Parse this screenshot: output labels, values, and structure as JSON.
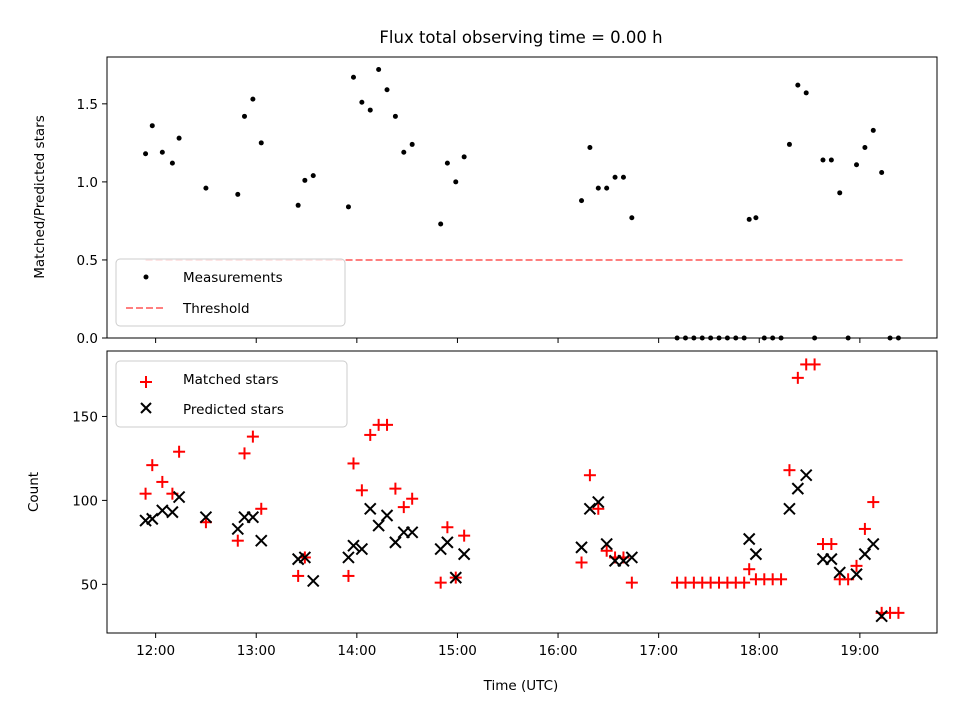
{
  "title": "Flux total observing time = 0.00 h",
  "xlabel": "Time (UTC)",
  "x_tick_labels": [
    "12:00",
    "13:00",
    "14:00",
    "15:00",
    "16:00",
    "17:00",
    "18:00",
    "19:00"
  ],
  "colors": {
    "measurements": "#000000",
    "threshold": "#ff7f7f",
    "matched": "#ff0000",
    "predicted": "#000000"
  },
  "chart_data": [
    {
      "type": "scatter",
      "ylabel": "Matched/Predicted stars",
      "xlim": [
        "11:31",
        "19:46"
      ],
      "ylim": [
        0,
        1.8
      ],
      "y_ticks": [
        0.0,
        0.5,
        1.0,
        1.5
      ],
      "y_tick_labels": [
        "0.0",
        "0.5",
        "1.0",
        "1.5"
      ],
      "legend": {
        "placement": "lower-left",
        "entries": [
          "Measurements",
          "Threshold"
        ]
      },
      "threshold": {
        "name": "Threshold",
        "y": 0.5,
        "x_range": [
          "11:54",
          "19:26"
        ]
      },
      "series": [
        {
          "name": "Measurements",
          "marker": "dot",
          "points": [
            [
              "11:54",
              1.18
            ],
            [
              "11:58",
              1.36
            ],
            [
              "12:04",
              1.19
            ],
            [
              "12:10",
              1.12
            ],
            [
              "12:14",
              1.28
            ],
            [
              "12:30",
              0.96
            ],
            [
              "12:49",
              0.92
            ],
            [
              "12:53",
              1.42
            ],
            [
              "12:58",
              1.53
            ],
            [
              "13:03",
              1.25
            ],
            [
              "13:25",
              0.85
            ],
            [
              "13:29",
              1.01
            ],
            [
              "13:34",
              1.04
            ],
            [
              "13:55",
              0.84
            ],
            [
              "13:58",
              1.67
            ],
            [
              "14:03",
              1.51
            ],
            [
              "14:08",
              1.46
            ],
            [
              "14:13",
              1.72
            ],
            [
              "14:18",
              1.59
            ],
            [
              "14:23",
              1.42
            ],
            [
              "14:28",
              1.19
            ],
            [
              "14:33",
              1.24
            ],
            [
              "14:50",
              0.73
            ],
            [
              "14:54",
              1.12
            ],
            [
              "14:59",
              1.0
            ],
            [
              "15:04",
              1.16
            ],
            [
              "16:14",
              0.88
            ],
            [
              "16:19",
              1.22
            ],
            [
              "16:24",
              0.96
            ],
            [
              "16:29",
              0.96
            ],
            [
              "16:34",
              1.03
            ],
            [
              "16:39",
              1.03
            ],
            [
              "16:44",
              0.77
            ],
            [
              "17:11",
              0.0
            ],
            [
              "17:16",
              0.0
            ],
            [
              "17:21",
              0.0
            ],
            [
              "17:26",
              0.0
            ],
            [
              "17:31",
              0.0
            ],
            [
              "17:36",
              0.0
            ],
            [
              "17:41",
              0.0
            ],
            [
              "17:46",
              0.0
            ],
            [
              "17:51",
              0.0
            ],
            [
              "17:54",
              0.76
            ],
            [
              "17:58",
              0.77
            ],
            [
              "18:03",
              0.0
            ],
            [
              "18:08",
              0.0
            ],
            [
              "18:13",
              0.0
            ],
            [
              "18:18",
              1.24
            ],
            [
              "18:23",
              1.62
            ],
            [
              "18:28",
              1.57
            ],
            [
              "18:33",
              0.0
            ],
            [
              "18:38",
              1.14
            ],
            [
              "18:43",
              1.14
            ],
            [
              "18:48",
              0.93
            ],
            [
              "18:53",
              0.0
            ],
            [
              "18:58",
              1.11
            ],
            [
              "19:03",
              1.22
            ],
            [
              "19:08",
              1.33
            ],
            [
              "19:13",
              1.06
            ],
            [
              "19:18",
              0.0
            ],
            [
              "19:23",
              0.0
            ]
          ]
        }
      ]
    },
    {
      "type": "scatter",
      "ylabel": "Count",
      "xlim": [
        "11:31",
        "19:46"
      ],
      "ylim": [
        21,
        189
      ],
      "y_ticks": [
        50,
        100,
        150
      ],
      "y_tick_labels": [
        "50",
        "100",
        "150"
      ],
      "legend": {
        "placement": "upper-left",
        "entries": [
          "Matched stars",
          "Predicted stars"
        ]
      },
      "series": [
        {
          "name": "Matched stars",
          "marker": "plus",
          "points": [
            [
              "11:54",
              104
            ],
            [
              "11:58",
              121
            ],
            [
              "12:04",
              111
            ],
            [
              "12:10",
              104
            ],
            [
              "12:14",
              129
            ],
            [
              "12:30",
              87
            ],
            [
              "12:49",
              76
            ],
            [
              "12:53",
              128
            ],
            [
              "12:58",
              138
            ],
            [
              "13:03",
              95
            ],
            [
              "13:25",
              55
            ],
            [
              "13:29",
              66
            ],
            [
              "13:55",
              55
            ],
            [
              "13:58",
              122
            ],
            [
              "14:03",
              106
            ],
            [
              "14:08",
              139
            ],
            [
              "14:13",
              145
            ],
            [
              "14:18",
              145
            ],
            [
              "14:23",
              107
            ],
            [
              "14:28",
              96
            ],
            [
              "14:33",
              101
            ],
            [
              "14:50",
              51
            ],
            [
              "14:54",
              84
            ],
            [
              "14:59",
              54
            ],
            [
              "15:04",
              79
            ],
            [
              "16:14",
              63
            ],
            [
              "16:19",
              115
            ],
            [
              "16:24",
              95
            ],
            [
              "16:29",
              70
            ],
            [
              "16:34",
              66
            ],
            [
              "16:39",
              66
            ],
            [
              "16:44",
              51
            ],
            [
              "17:11",
              51
            ],
            [
              "17:16",
              51
            ],
            [
              "17:21",
              51
            ],
            [
              "17:26",
              51
            ],
            [
              "17:31",
              51
            ],
            [
              "17:36",
              51
            ],
            [
              "17:41",
              51
            ],
            [
              "17:46",
              51
            ],
            [
              "17:51",
              51
            ],
            [
              "17:54",
              59
            ],
            [
              "17:58",
              53
            ],
            [
              "18:03",
              53
            ],
            [
              "18:08",
              53
            ],
            [
              "18:13",
              53
            ],
            [
              "18:18",
              118
            ],
            [
              "18:23",
              173
            ],
            [
              "18:28",
              181
            ],
            [
              "18:33",
              181
            ],
            [
              "18:38",
              74
            ],
            [
              "18:43",
              74
            ],
            [
              "18:48",
              53
            ],
            [
              "18:53",
              53
            ],
            [
              "18:58",
              61
            ],
            [
              "19:03",
              83
            ],
            [
              "19:08",
              99
            ],
            [
              "19:13",
              33
            ],
            [
              "19:18",
              33
            ],
            [
              "19:23",
              33
            ]
          ]
        },
        {
          "name": "Predicted stars",
          "marker": "x",
          "points": [
            [
              "11:54",
              88
            ],
            [
              "11:58",
              89
            ],
            [
              "12:04",
              94
            ],
            [
              "12:10",
              93
            ],
            [
              "12:14",
              102
            ],
            [
              "12:30",
              90
            ],
            [
              "12:49",
              83
            ],
            [
              "12:53",
              90
            ],
            [
              "12:58",
              90
            ],
            [
              "13:03",
              76
            ],
            [
              "13:25",
              65
            ],
            [
              "13:29",
              66
            ],
            [
              "13:34",
              52
            ],
            [
              "13:55",
              66
            ],
            [
              "13:58",
              73
            ],
            [
              "14:03",
              71
            ],
            [
              "14:08",
              95
            ],
            [
              "14:13",
              85
            ],
            [
              "14:18",
              91
            ],
            [
              "14:23",
              75
            ],
            [
              "14:28",
              81
            ],
            [
              "14:33",
              81
            ],
            [
              "14:50",
              71
            ],
            [
              "14:54",
              75
            ],
            [
              "14:59",
              54
            ],
            [
              "15:04",
              68
            ],
            [
              "16:14",
              72
            ],
            [
              "16:19",
              95
            ],
            [
              "16:24",
              99
            ],
            [
              "16:29",
              74
            ],
            [
              "16:34",
              64
            ],
            [
              "16:39",
              64
            ],
            [
              "16:44",
              66
            ],
            [
              "17:54",
              77
            ],
            [
              "17:58",
              68
            ],
            [
              "18:18",
              95
            ],
            [
              "18:23",
              107
            ],
            [
              "18:28",
              115
            ],
            [
              "18:38",
              65
            ],
            [
              "18:43",
              65
            ],
            [
              "18:48",
              57
            ],
            [
              "18:58",
              56
            ],
            [
              "19:03",
              68
            ],
            [
              "19:08",
              74
            ],
            [
              "19:13",
              31
            ]
          ]
        }
      ]
    }
  ]
}
